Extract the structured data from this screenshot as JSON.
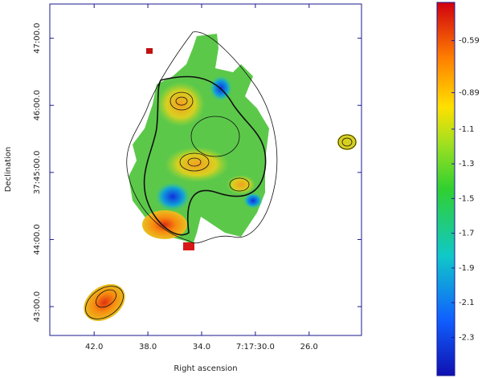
{
  "chart_data": {
    "type": "image",
    "x_label": "Right ascension",
    "y_label": "Declination",
    "xlim": [
      45.3,
      22.1
    ],
    "xticks": [
      {
        "value": 42,
        "label": "42.0"
      },
      {
        "value": 38,
        "label": "38.0"
      },
      {
        "value": 34,
        "label": "34.0"
      },
      {
        "value": 30,
        "label": "7:17:30.0"
      },
      {
        "value": 26,
        "label": "26.0"
      }
    ],
    "ylim": [
      42.57,
      47.51
    ],
    "yticks": [
      {
        "value": 43,
        "label": "43:00.0"
      },
      {
        "value": 44,
        "label": "44:00.0"
      },
      {
        "value": 45,
        "label": "37:45:00.0"
      },
      {
        "value": 46,
        "label": "46:00.0"
      },
      {
        "value": 47,
        "label": "47:00.0"
      }
    ],
    "colorbar_lim": [
      -2.52,
      -0.37
    ],
    "colorbar_ticks": [
      -0.59,
      -0.89,
      -1.1,
      -1.3,
      -1.5,
      -1.7,
      -1.9,
      -2.1,
      -2.3
    ]
  }
}
